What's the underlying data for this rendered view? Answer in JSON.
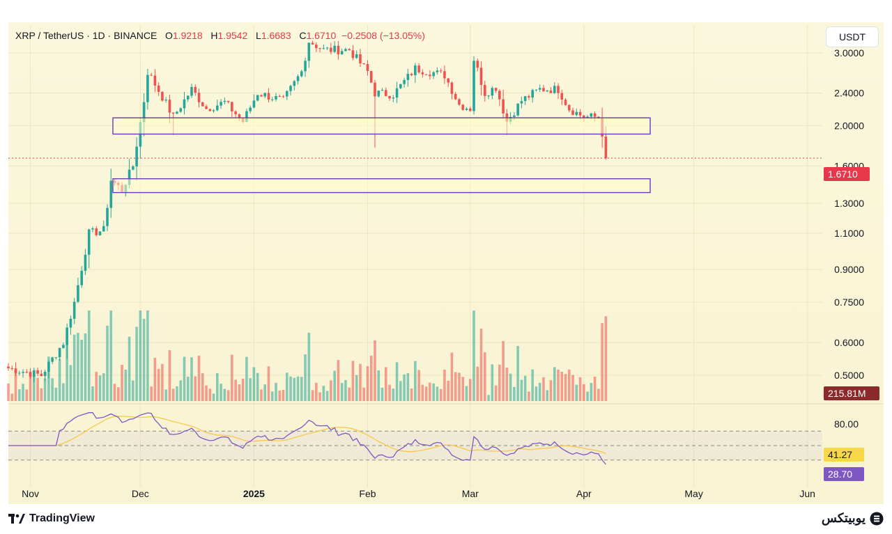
{
  "header": {
    "symbol": "XRP / TetherUS · 1D · BINANCE",
    "o_label": "O",
    "o_value": "1.9218",
    "h_label": "H",
    "h_value": "1.9542",
    "l_label": "L",
    "l_value": "1.6683",
    "c_label": "C",
    "c_value": "1.6710",
    "change": "−0.2508 (−13.05%)"
  },
  "currency_button": "USDT",
  "price_tag": "1.6710",
  "volume_tag": "215.81M",
  "rsi_tag": "41.27",
  "rsi_tag2": "28.70",
  "footer": {
    "tradingview": "TradingView",
    "brand": "یوبیتکس"
  },
  "colors": {
    "up": "#26a69a",
    "down": "#ef5350",
    "rsi": "#7e57c2",
    "rsi_ma": "#f7c948",
    "zone": "#673ab7"
  },
  "chart_data": {
    "type": "candlestick",
    "y_scale": "log",
    "yticks": [
      "3.0000",
      "2.4000",
      "2.0000",
      "1.6000",
      "1.3000",
      "1.1000",
      "0.9000",
      "0.7500",
      "0.6000",
      "0.5000"
    ],
    "xticks": [
      "Nov",
      "Dec",
      "2025",
      "Feb",
      "Mar",
      "Apr",
      "May",
      "Jun"
    ],
    "ylim": [
      0.43,
      3.5
    ],
    "zones": [
      [
        1.91,
        2.09
      ],
      [
        1.38,
        1.49
      ]
    ],
    "rsi_levels": [
      "80.00"
    ],
    "anchors": [
      [
        "2024-10-26",
        0.52
      ],
      [
        "2024-11-04",
        0.5
      ],
      [
        "2024-11-10",
        0.6
      ],
      [
        "2024-11-13",
        0.75
      ],
      [
        "2024-11-17",
        1.1
      ],
      [
        "2024-11-21",
        1.12
      ],
      [
        "2024-11-23",
        1.48
      ],
      [
        "2024-11-26",
        1.4
      ],
      [
        "2024-11-29",
        1.6
      ],
      [
        "2024-12-02",
        2.3
      ],
      [
        "2024-12-03",
        2.7
      ],
      [
        "2024-12-07",
        2.35
      ],
      [
        "2024-12-10",
        2.1
      ],
      [
        "2024-12-15",
        2.45
      ],
      [
        "2024-12-19",
        2.2
      ],
      [
        "2024-12-24",
        2.28
      ],
      [
        "2024-12-29",
        2.05
      ],
      [
        "2025-01-02",
        2.4
      ],
      [
        "2025-01-09",
        2.3
      ],
      [
        "2025-01-14",
        2.7
      ],
      [
        "2025-01-16",
        3.2
      ],
      [
        "2025-01-20",
        3.05
      ],
      [
        "2025-01-27",
        3.05
      ],
      [
        "2025-02-01",
        2.7
      ],
      [
        "2025-02-03",
        2.4
      ],
      [
        "2025-02-08",
        2.38
      ],
      [
        "2025-02-14",
        2.75
      ],
      [
        "2025-02-18",
        2.7
      ],
      [
        "2025-02-22",
        2.65
      ],
      [
        "2025-02-26",
        2.25
      ],
      [
        "2025-03-01",
        2.2
      ],
      [
        "2025-03-02",
        2.9
      ],
      [
        "2025-03-05",
        2.4
      ],
      [
        "2025-03-08",
        2.48
      ],
      [
        "2025-03-11",
        2.05
      ],
      [
        "2025-03-15",
        2.3
      ],
      [
        "2025-03-20",
        2.45
      ],
      [
        "2025-03-25",
        2.45
      ],
      [
        "2025-03-28",
        2.2
      ],
      [
        "2025-04-01",
        2.1
      ],
      [
        "2025-04-05",
        2.1
      ],
      [
        "2025-04-06",
        1.92
      ],
      [
        "2025-04-07",
        1.671
      ]
    ]
  }
}
